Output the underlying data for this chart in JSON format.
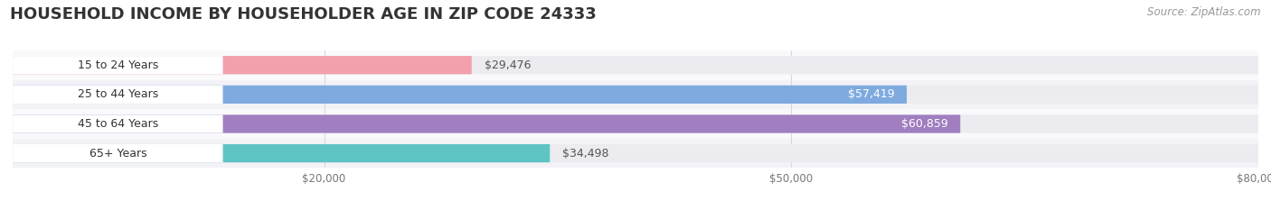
{
  "title": "HOUSEHOLD INCOME BY HOUSEHOLDER AGE IN ZIP CODE 24333",
  "source": "Source: ZipAtlas.com",
  "categories": [
    "15 to 24 Years",
    "25 to 44 Years",
    "45 to 64 Years",
    "65+ Years"
  ],
  "values": [
    29476,
    57419,
    60859,
    34498
  ],
  "bar_colors": [
    "#f2a0ab",
    "#7eaadf",
    "#a07ec0",
    "#5ec4c4"
  ],
  "label_colors_inside": [
    "#555555",
    "#ffffff",
    "#ffffff",
    "#555555"
  ],
  "background_color": "#ffffff",
  "bar_background_color": "#ebebf0",
  "xlim": [
    0,
    80000
  ],
  "xticks": [
    20000,
    50000,
    80000
  ],
  "xtick_labels": [
    "$20,000",
    "$50,000",
    "$80,000"
  ],
  "title_fontsize": 13,
  "source_fontsize": 8.5,
  "bar_height": 0.62,
  "figsize": [
    14.06,
    2.33
  ],
  "dpi": 100,
  "row_bg_colors": [
    "#f9f9fc",
    "#f2f2f7",
    "#f9f9fc",
    "#f2f2f7"
  ]
}
